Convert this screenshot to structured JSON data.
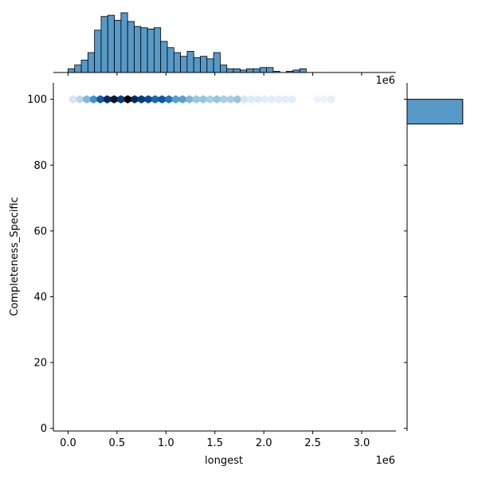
{
  "chart_data": {
    "type": "jointplot-hexbin",
    "xlabel": "longest",
    "ylabel": "Completeness_Specific",
    "x_offset_text": "1e6",
    "top_offset_text": "1e6",
    "xlim": [
      -0.15,
      3.35
    ],
    "ylim": [
      -0.8,
      105
    ],
    "xticks": [
      0.0,
      0.5,
      1.0,
      1.5,
      2.0,
      2.5,
      3.0
    ],
    "xtick_labels": [
      "0.0",
      "0.5",
      "1.0",
      "1.5",
      "2.0",
      "2.5",
      "3.0"
    ],
    "yticks": [
      0,
      20,
      40,
      60,
      80,
      100
    ],
    "ytick_labels": [
      "0",
      "20",
      "40",
      "60",
      "80",
      "100"
    ],
    "colors": {
      "bar_fill": "#5799c7",
      "bar_edge": "#000000"
    },
    "hexbin": {
      "y": 100,
      "colormap": "Blues",
      "x": [
        0.05,
        0.12,
        0.19,
        0.26,
        0.33,
        0.4,
        0.47,
        0.54,
        0.61,
        0.68,
        0.75,
        0.82,
        0.89,
        0.96,
        1.03,
        1.1,
        1.17,
        1.24,
        1.31,
        1.38,
        1.45,
        1.52,
        1.59,
        1.66,
        1.73,
        1.8,
        1.87,
        1.94,
        2.01,
        2.08,
        2.15,
        2.22,
        2.29,
        2.55,
        2.62,
        2.69
      ],
      "intensity": [
        0.15,
        0.25,
        0.4,
        0.55,
        0.75,
        0.9,
        0.95,
        0.85,
        1.0,
        0.9,
        0.85,
        0.8,
        0.7,
        0.75,
        0.65,
        0.5,
        0.5,
        0.4,
        0.35,
        0.35,
        0.3,
        0.35,
        0.3,
        0.3,
        0.35,
        0.15,
        0.12,
        0.12,
        0.1,
        0.1,
        0.1,
        0.1,
        0.1,
        0.05,
        0.05,
        0.08
      ]
    },
    "marginal_x_hist": {
      "bin_start": 0.0,
      "bin_width": 0.0676,
      "counts": [
        3,
        6,
        10,
        16,
        34,
        45,
        46,
        42,
        48,
        41,
        37,
        36,
        35,
        36,
        25,
        20,
        16,
        13,
        17,
        12,
        13,
        11,
        16,
        6,
        3,
        3,
        2,
        3,
        3,
        4,
        4,
        1,
        0,
        1,
        2,
        3,
        0,
        0,
        0,
        0,
        0,
        0
      ]
    },
    "marginal_y_hist": {
      "bins": [
        [
          92.5,
          100.0
        ]
      ],
      "counts": [
        1
      ]
    }
  }
}
